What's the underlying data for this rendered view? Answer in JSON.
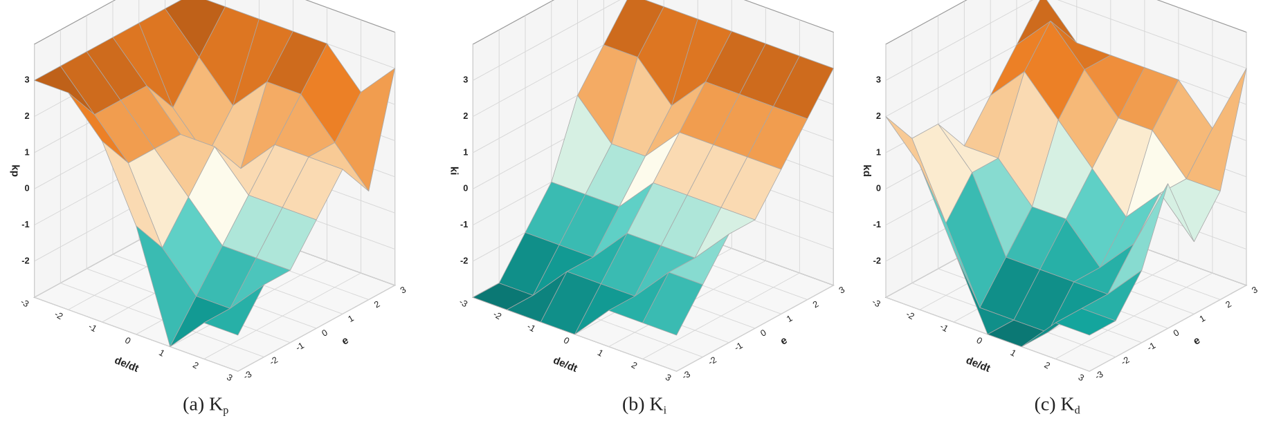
{
  "chart_data": [
    {
      "type": "surface",
      "caption": "(a) K",
      "caption_sub": "p",
      "xlabel": "de/dt",
      "ylabel": "e",
      "zlabel": "kp",
      "x": [
        -3,
        -2,
        -1,
        0,
        1,
        2,
        3
      ],
      "y": [
        -3,
        -2,
        -1,
        0,
        1,
        2,
        3
      ],
      "z": [
        [
          3,
          3,
          3,
          3,
          3,
          3,
          3
        ],
        [
          3,
          2,
          2,
          2,
          1,
          2,
          3
        ],
        [
          2,
          1,
          1,
          1,
          0,
          1,
          3
        ],
        [
          0,
          -1,
          0,
          1,
          0,
          2,
          3
        ],
        [
          -3,
          -2,
          -1,
          0,
          1,
          2,
          3
        ],
        [
          -2,
          -2,
          -1,
          0,
          1,
          1,
          2
        ],
        [
          -2,
          -1,
          -1,
          0,
          1,
          0,
          3
        ]
      ],
      "xlim": [
        -3,
        3
      ],
      "ylim": [
        -3,
        3
      ],
      "zlim": [
        -3,
        4
      ],
      "xticks": [
        -3,
        -2,
        -1,
        0,
        1,
        2,
        3
      ],
      "yticks": [
        -3,
        -2,
        -1,
        0,
        1,
        2,
        3
      ],
      "zticks": [
        -2,
        -1,
        0,
        1,
        2,
        3
      ],
      "grid": true
    },
    {
      "type": "surface",
      "caption": "(b) K",
      "caption_sub": "i",
      "xlabel": "de/dt",
      "ylabel": "e",
      "zlabel": "ki",
      "x": [
        -3,
        -2,
        -1,
        0,
        1,
        2,
        3
      ],
      "y": [
        -3,
        -2,
        -1,
        0,
        1,
        2,
        3
      ],
      "z": [
        [
          -3,
          -3,
          -2,
          -1,
          1,
          2,
          3
        ],
        [
          -3,
          -3,
          -2,
          -1,
          0,
          2,
          3
        ],
        [
          -3,
          -2,
          -2,
          -1,
          0,
          1,
          3
        ],
        [
          -3,
          -2,
          -1,
          0,
          1,
          2,
          3
        ],
        [
          -2,
          -2,
          -1,
          0,
          1,
          2,
          3
        ],
        [
          -2,
          -1,
          -1,
          0,
          1,
          2,
          3
        ],
        [
          -2,
          -1,
          0,
          0,
          1,
          2,
          3
        ]
      ],
      "xlim": [
        -3,
        3
      ],
      "ylim": [
        -3,
        3
      ],
      "zlim": [
        -3,
        4
      ],
      "xticks": [
        -3,
        -2,
        -1,
        0,
        1,
        2,
        3
      ],
      "yticks": [
        -3,
        -2,
        -1,
        0,
        1,
        2,
        3
      ],
      "zticks": [
        -2,
        -1,
        0,
        1,
        2,
        3
      ],
      "grid": true
    },
    {
      "type": "surface",
      "caption": "(c) K",
      "caption_sub": "d",
      "xlabel": "de/dt",
      "ylabel": "e",
      "zlabel": "kd",
      "x": [
        -3,
        -2,
        -1,
        0,
        1,
        2,
        3
      ],
      "y": [
        -3,
        -2,
        -1,
        0,
        1,
        2,
        3
      ],
      "z": [
        [
          2,
          1,
          1,
          0,
          1,
          2,
          3
        ],
        [
          1,
          -1,
          0,
          0,
          2,
          3,
          2
        ],
        [
          -1,
          -3,
          -2,
          -1,
          1,
          2,
          2
        ],
        [
          -3,
          -3,
          -2,
          -1,
          0,
          1,
          2
        ],
        [
          -3,
          -3,
          -2,
          -2,
          -1,
          1,
          2
        ],
        [
          -2,
          -2,
          -2,
          -1,
          0,
          0,
          1
        ],
        [
          -2,
          -2,
          -1,
          1,
          -1,
          0,
          3
        ]
      ],
      "xlim": [
        -3,
        3
      ],
      "ylim": [
        -3,
        3
      ],
      "zlim": [
        -3,
        4
      ],
      "xticks": [
        -3,
        -2,
        -1,
        0,
        1,
        2,
        3
      ],
      "yticks": [
        -3,
        -2,
        -1,
        0,
        1,
        2,
        3
      ],
      "zticks": [
        -2,
        -1,
        0,
        1,
        2,
        3
      ],
      "grid": true
    }
  ]
}
